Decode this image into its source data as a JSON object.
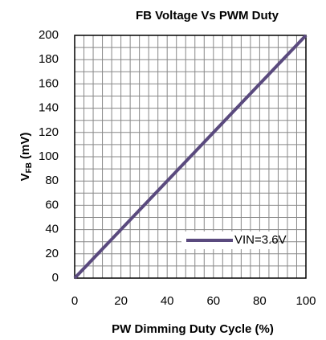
{
  "chart_data": {
    "type": "line",
    "title": "FB Voltage  Vs  PWM Duty",
    "xlabel": "PW Dimming Duty Cycle (%)",
    "ylabel": {
      "main": "V",
      "sub": "FB",
      "unit": "(mV)"
    },
    "x": [
      0,
      100
    ],
    "series": [
      {
        "name": "VIN=3.6V",
        "color": "#5a4a7e",
        "values": [
          0,
          200
        ]
      }
    ],
    "xlim": [
      0,
      100
    ],
    "ylim": [
      0,
      200
    ],
    "xticks": [
      0,
      20,
      40,
      60,
      80,
      100
    ],
    "yticks": [
      0,
      20,
      40,
      60,
      80,
      100,
      120,
      140,
      160,
      180,
      200
    ],
    "minor_xticks": [
      4,
      8,
      12,
      16,
      24,
      28,
      32,
      36,
      44,
      48,
      52,
      56,
      64,
      68,
      72,
      76,
      84,
      88,
      92,
      96
    ],
    "minor_yticks": [
      10,
      30,
      50,
      70,
      90,
      110,
      130,
      150,
      170,
      190
    ],
    "grid": true,
    "legend": "lower right"
  }
}
